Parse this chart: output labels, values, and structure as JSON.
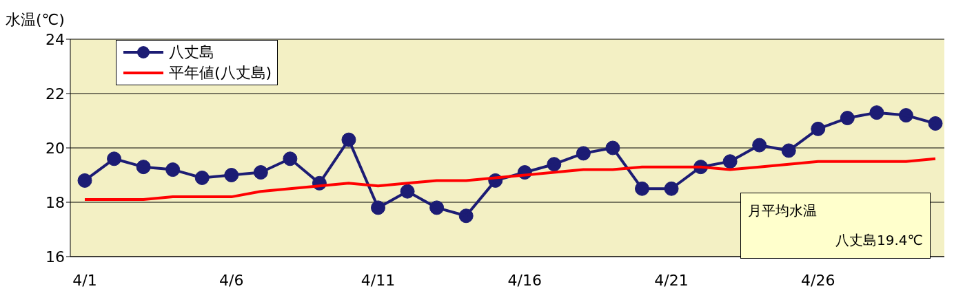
{
  "chart_data": {
    "type": "line",
    "ylabel": "水温(℃)",
    "categories": [
      "4/1",
      null,
      null,
      null,
      null,
      "4/6",
      null,
      null,
      null,
      null,
      "4/11",
      null,
      null,
      null,
      null,
      "4/16",
      null,
      null,
      null,
      null,
      "4/21",
      null,
      null,
      null,
      null,
      "4/26",
      null,
      null,
      null,
      null
    ],
    "series": [
      {
        "name": "八丈島",
        "color": "#1c1c74",
        "marker": "circle",
        "values": [
          18.8,
          19.6,
          19.3,
          19.2,
          18.9,
          19.0,
          19.1,
          19.6,
          18.7,
          20.3,
          17.8,
          18.4,
          17.8,
          17.5,
          18.8,
          19.1,
          19.4,
          19.8,
          20.0,
          18.5,
          18.5,
          19.3,
          19.5,
          20.1,
          19.9,
          20.7,
          21.1,
          21.3,
          21.2,
          20.9
        ]
      },
      {
        "name": "平年値(八丈島)",
        "color": "#ff0000",
        "marker": "none",
        "values": [
          18.1,
          18.1,
          18.1,
          18.2,
          18.2,
          18.2,
          18.4,
          18.5,
          18.6,
          18.7,
          18.6,
          18.7,
          18.8,
          18.8,
          18.9,
          19.0,
          19.1,
          19.2,
          19.2,
          19.3,
          19.3,
          19.3,
          19.2,
          19.3,
          19.4,
          19.5,
          19.5,
          19.5,
          19.5,
          19.6
        ]
      }
    ],
    "ylim": [
      16,
      24
    ],
    "yticks": [
      16,
      18,
      20,
      22,
      24
    ],
    "grid": "y",
    "legend": "top left",
    "annotations": [
      "月平均水温",
      "八丈島19.4℃"
    ]
  }
}
